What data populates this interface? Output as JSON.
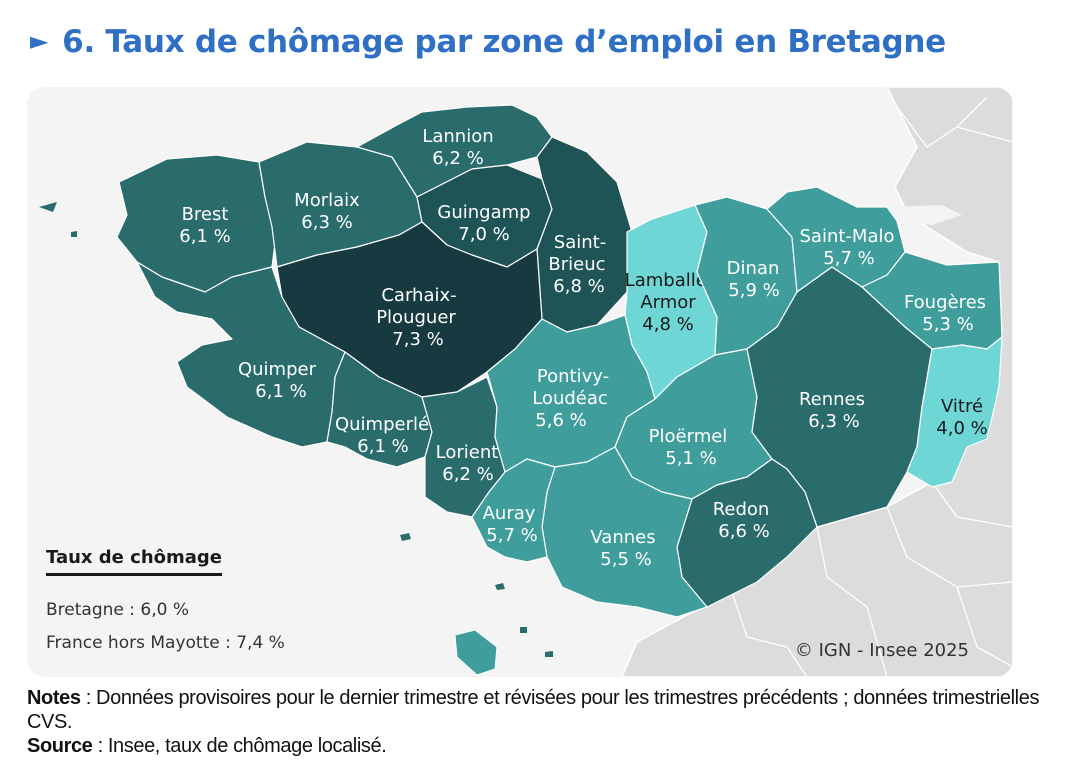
{
  "title": "6. Taux de chômage par zone d’emploi en Bretagne",
  "title_arrow": "►",
  "colors": {
    "title": "#2f6fc4",
    "class_4_0_4_8": "#6fd6d6",
    "class_5_1_5_9": "#3f9e9c",
    "class_6_1_6_3": "#2a6b6b",
    "class_6_6_7_0": "#1f5456",
    "class_7_3": "#163a40",
    "neighbouring_land": "#dcdcdc"
  },
  "zones": [
    {
      "name": "Lannion",
      "rate": "6,2 %",
      "value": 6.2
    },
    {
      "name": "Brest",
      "rate": "6,1 %",
      "value": 6.1
    },
    {
      "name": "Morlaix",
      "rate": "6,3 %",
      "value": 6.3
    },
    {
      "name": "Guingamp",
      "rate": "7,0 %",
      "value": 7.0
    },
    {
      "name": "Saint-\nBrieuc",
      "line1": "Saint-",
      "line2": "Brieuc",
      "rate": "6,8 %",
      "value": 6.8
    },
    {
      "name": "Carhaix-Plouguer",
      "line1": "Carhaix-",
      "line2": "Plouguer",
      "rate": "7,3 %",
      "value": 7.3
    },
    {
      "name": "Lamballe-Armor",
      "line1": "Lamballe-",
      "line2": "Armor",
      "rate": "4,8 %",
      "value": 4.8
    },
    {
      "name": "Dinan",
      "rate": "5,9 %",
      "value": 5.9
    },
    {
      "name": "Saint-Malo",
      "rate": "5,7 %",
      "value": 5.7
    },
    {
      "name": "Fougères",
      "rate": "5,3 %",
      "value": 5.3
    },
    {
      "name": "Quimper",
      "rate": "6,1 %",
      "value": 6.1
    },
    {
      "name": "Pontivy-Loudéac",
      "line1": "Pontivy-",
      "line2": "Loudéac",
      "rate": "5,6 %",
      "value": 5.6
    },
    {
      "name": "Rennes",
      "rate": "6,3 %",
      "value": 6.3
    },
    {
      "name": "Vitré",
      "rate": "4,0 %",
      "value": 4.0
    },
    {
      "name": "Quimperlé",
      "rate": "6,1 %",
      "value": 6.1
    },
    {
      "name": "Lorient",
      "rate": "6,2 %",
      "value": 6.2
    },
    {
      "name": "Ploërmel",
      "rate": "5,1 %",
      "value": 5.1
    },
    {
      "name": "Redon",
      "rate": "6,6 %",
      "value": 6.6
    },
    {
      "name": "Auray",
      "rate": "5,7 %",
      "value": 5.7
    },
    {
      "name": "Vannes",
      "rate": "5,5 %",
      "value": 5.5
    }
  ],
  "legend": {
    "title": "Taux de chômage",
    "bretagne": "Bretagne : 6,0 %",
    "france": "France hors Mayotte : 7,4 %"
  },
  "copyright": "© IGN - Insee 2025",
  "notes": {
    "notes_label": "Notes",
    "notes_text": " : Données provisoires pour le dernier trimestre et révisées pour les trimestres précédents ; données trimestrielles CVS.",
    "source_label": "Source",
    "source_text": " : Insee, taux de chômage localisé."
  }
}
